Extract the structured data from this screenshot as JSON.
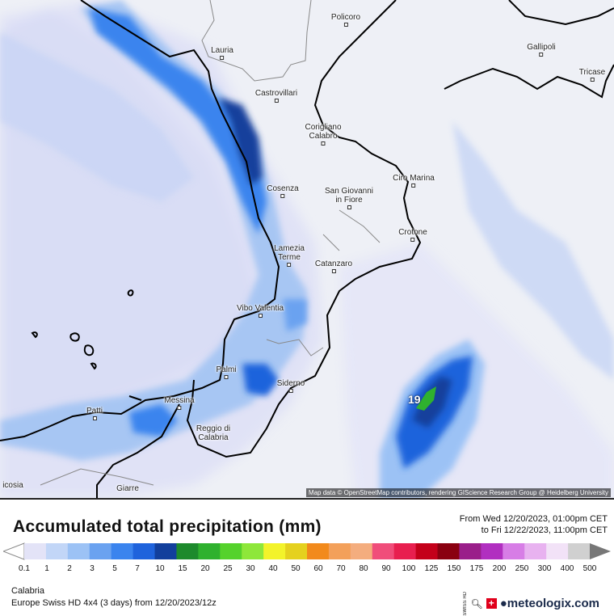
{
  "map": {
    "attribution": "Map data © OpenStreetMap contributors, rendering GIScience Research Group @ Heidelberg University",
    "peak_value": "19",
    "cities": [
      {
        "id": "policoro",
        "name": "Policoro"
      },
      {
        "id": "lauria",
        "name": "Lauria"
      },
      {
        "id": "gallipoli",
        "name": "Gallipoli"
      },
      {
        "id": "tricase",
        "name": "Tricase"
      },
      {
        "id": "castrovillari",
        "name": "Castrovillari"
      },
      {
        "id": "corigliano",
        "name": "Corigliano\nCalabro"
      },
      {
        "id": "ciro",
        "name": "Ciro Marina"
      },
      {
        "id": "cosenza",
        "name": "Cosenza"
      },
      {
        "id": "sangiovanni",
        "name": "San Giovanni\nin Fiore"
      },
      {
        "id": "crotone",
        "name": "Crotone"
      },
      {
        "id": "lamezia",
        "name": "Lamezia\nTerme"
      },
      {
        "id": "catanzaro",
        "name": "Catanzaro"
      },
      {
        "id": "vibo",
        "name": "Vibo Valentia"
      },
      {
        "id": "palmi",
        "name": "Palmi"
      },
      {
        "id": "siderno",
        "name": "Siderno"
      },
      {
        "id": "messina",
        "name": "Messina"
      },
      {
        "id": "patti",
        "name": "Patti"
      },
      {
        "id": "reggio",
        "name": "Reggio di\nCalabria"
      },
      {
        "id": "nicosia",
        "name": "icosia"
      },
      {
        "id": "giarre",
        "name": "Giarre"
      }
    ]
  },
  "legend": {
    "title": "Accumulated total precipitation (mm)",
    "from": "From Wed 12/20/2023, 01:00pm CET",
    "to": "to Fri 12/22/2023, 11:00pm CET",
    "ticks": [
      "0.1",
      "1",
      "2",
      "3",
      "5",
      "7",
      "10",
      "15",
      "20",
      "25",
      "30",
      "40",
      "50",
      "60",
      "70",
      "80",
      "90",
      "100",
      "125",
      "150",
      "175",
      "200",
      "250",
      "300",
      "400",
      "500"
    ],
    "colors": [
      "#e3e3f7",
      "#c2d6f7",
      "#9cc2f5",
      "#6aa2f0",
      "#3b84ee",
      "#1f63dc",
      "#123f9c",
      "#1d8a2c",
      "#2fb12e",
      "#55d22c",
      "#8ee73a",
      "#f3f32a",
      "#e5d11e",
      "#f28a1c",
      "#f3a05a",
      "#f4ad7e",
      "#f04d7a",
      "#e81f4f",
      "#c4001a",
      "#8a0010",
      "#9a1f8a",
      "#b12fc0",
      "#d77de6",
      "#e8b2f0",
      "#f2e2f7",
      "#d0d0d0"
    ]
  },
  "meta": {
    "region": "Calabria",
    "model": "Europe Swiss HD 4x4  (3 days)  from  12/20/2023/12z",
    "brand": "meteologix.com",
    "swiss_hd": "SWISS HD"
  }
}
